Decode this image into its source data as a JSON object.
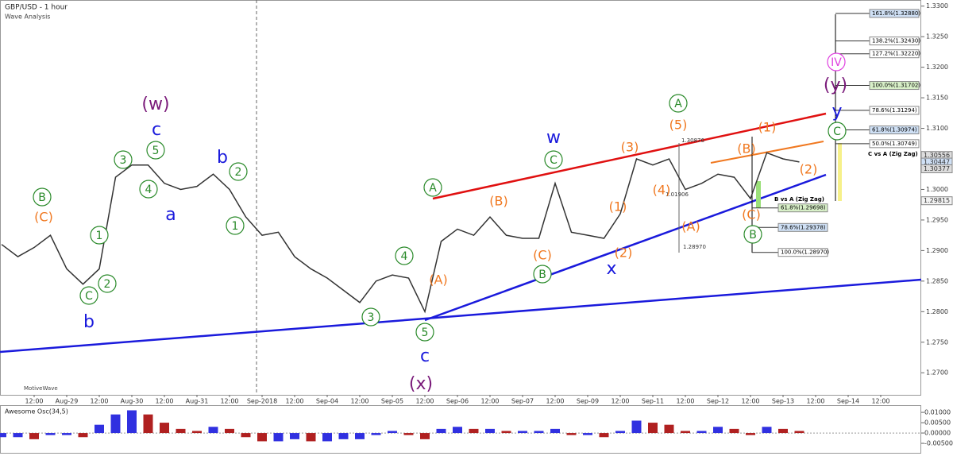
{
  "header": {
    "title": "GBP/USD - 1 hour",
    "subtitle": "Wave Analysis",
    "watermark": "MotiveWave"
  },
  "chart_data": [
    {
      "type": "line",
      "color": "#333333",
      "categories": [
        null,
        null,
        "12:00",
        null,
        "Aug-29",
        null,
        "12:00",
        null,
        "Aug-30",
        null,
        "12:00",
        null,
        "Aug-31",
        null,
        "12:00",
        null,
        "Sep-2018",
        null,
        "12:00",
        null,
        "Sep-04",
        null,
        "12:00",
        null,
        "Sep-05",
        null,
        "12:00",
        null,
        "Sep-06",
        null,
        "12:00",
        null,
        "Sep-07",
        null,
        "12:00",
        null,
        "Sep-09",
        null,
        "12:00",
        null,
        "Sep-11",
        null,
        "12:00",
        null,
        "Sep-12",
        null,
        "12:00",
        null,
        "Sep-13",
        null,
        "12:00",
        null,
        "Sep-14",
        null,
        "12:00"
      ],
      "values": [
        1.291,
        1.289,
        1.2905,
        1.2925,
        1.287,
        1.2845,
        1.287,
        1.302,
        1.304,
        1.304,
        1.301,
        1.3,
        1.3005,
        1.3025,
        1.3,
        1.2955,
        1.2925,
        1.293,
        1.289,
        1.287,
        1.2855,
        1.2835,
        1.2815,
        1.285,
        1.286,
        1.2855,
        1.28,
        1.2915,
        1.2935,
        1.2925,
        1.2955,
        1.2925,
        1.292,
        1.292,
        1.301,
        1.293,
        1.2925,
        1.292,
        1.296,
        1.305,
        1.304,
        1.305,
        1.3,
        1.301,
        1.3025,
        1.302,
        1.2985,
        1.306,
        1.305,
        1.3045,
        null,
        null,
        null,
        null,
        null
      ],
      "ylim": [
        1.266,
        1.331
      ],
      "yticks": [
        {
          "value": 1.33,
          "label": "1.3300"
        },
        {
          "value": 1.325,
          "label": "1.3250"
        },
        {
          "value": 1.32,
          "label": "1.3200"
        },
        {
          "value": 1.315,
          "label": "1.3150"
        },
        {
          "value": 1.31,
          "label": "1.3100"
        },
        {
          "value": 1.305,
          "label": "1.3050"
        },
        {
          "value": 1.3,
          "label": "1.3000"
        },
        {
          "value": 1.295,
          "label": "1.2950"
        },
        {
          "value": 1.29,
          "label": "1.2900"
        },
        {
          "value": 1.285,
          "label": "1.2850"
        },
        {
          "value": 1.28,
          "label": "1.2800"
        },
        {
          "value": 1.275,
          "label": "1.2750"
        },
        {
          "value": 1.27,
          "label": "1.2700"
        }
      ],
      "price_tags": [
        {
          "value": 1.30556,
          "label": "1.30556"
        },
        {
          "value": 1.30447,
          "label": "1.30447"
        },
        {
          "value": 1.30377,
          "label": "1.30377"
        },
        {
          "value": 1.29815,
          "label": "1.29815"
        }
      ],
      "fib_levels": [
        {
          "value": 1.3288,
          "label": "161.8%(1.32880)"
        },
        {
          "value": 1.3243,
          "label": "138.2%(1.32430)"
        },
        {
          "value": 1.3222,
          "label": "127.2%(1.32220)"
        },
        {
          "value": 1.31702,
          "label": "100.0%(1.31702)"
        },
        {
          "value": 1.31294,
          "label": "78.6%(1.31294)"
        },
        {
          "value": 1.30974,
          "label": "61.8%(1.30974)"
        },
        {
          "value": 1.30749,
          "label": "50.0%(1.30749)"
        },
        {
          "value": 1.29698,
          "label": "61.8%(1.29698)"
        },
        {
          "value": 1.29378,
          "label": "78.6%(1.29378)"
        },
        {
          "value": 1.2897,
          "label": "100.0%(1.28970)"
        }
      ],
      "fib_titles": [
        "C vs A (Zig Zag)",
        "B vs A (Zig Zag)"
      ],
      "notes": [
        "1.30876",
        "1.01906",
        "1.28970"
      ],
      "wave_labels": [
        "B",
        "(C)",
        "1",
        "2",
        "C",
        "b",
        "3",
        "5",
        "4",
        "c",
        "(w)",
        "a",
        "b",
        "2",
        "1",
        "3",
        "4",
        "5",
        "(A)",
        "c",
        "(x)",
        "A",
        "(B)",
        "(C)",
        "B",
        "C",
        "w",
        "(2)",
        "x",
        "(1)",
        "(3)",
        "(4)",
        "(5)",
        "A",
        "(A)",
        "(B)",
        "(C)",
        "B",
        "(1)",
        "(2)",
        "C",
        "y",
        "(y)",
        "IV"
      ]
    },
    {
      "type": "bar",
      "title": "Awesome Osc(34,5)",
      "values": [
        -0.002,
        -0.002,
        -0.003,
        -0.001,
        -0.001,
        -0.002,
        0.004,
        0.009,
        0.011,
        0.009,
        0.005,
        0.002,
        0.001,
        0.003,
        0.002,
        -0.002,
        -0.004,
        -0.004,
        -0.003,
        -0.004,
        -0.004,
        -0.003,
        -0.003,
        -0.001,
        0.001,
        -0.001,
        -0.003,
        0.002,
        0.003,
        0.002,
        0.002,
        0.001,
        0.001,
        0.001,
        0.002,
        -0.001,
        -0.001,
        -0.002,
        0.001,
        0.006,
        0.005,
        0.004,
        0.001,
        0.001,
        0.003,
        0.002,
        -0.001,
        0.003,
        0.002,
        0.001,
        null,
        null,
        null,
        null,
        null
      ],
      "ylim": [
        -0.0096,
        0.0135
      ],
      "yticks": [
        {
          "value": 0.01,
          "label": "0.01000"
        },
        {
          "value": 0.005,
          "label": "0.00500"
        },
        {
          "value": 0,
          "label": "0.00000"
        },
        {
          "value": -0.005,
          "label": "-0.00500"
        }
      ],
      "colors": [
        "#3030e0",
        "#b02020"
      ]
    }
  ]
}
